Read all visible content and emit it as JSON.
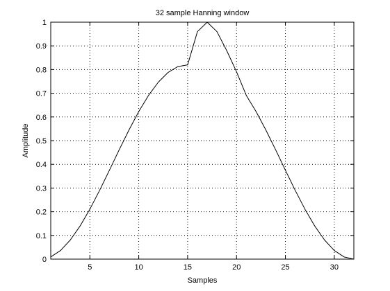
{
  "chart_data": {
    "type": "line",
    "title": "32 sample Hanning window",
    "xlabel": "Samples",
    "ylabel": "Amplitude",
    "xlim": [
      1,
      32
    ],
    "ylim": [
      0,
      1
    ],
    "xticks": [
      5,
      10,
      15,
      20,
      25,
      30
    ],
    "xtick_labels": [
      "5",
      "10",
      "15",
      "20",
      "25",
      "30"
    ],
    "yticks": [
      0,
      0.1,
      0.2,
      0.3,
      0.4,
      0.5,
      0.6,
      0.7,
      0.8,
      0.9,
      1
    ],
    "ytick_labels": [
      "0",
      "0.1",
      "0.2",
      "0.3",
      "0.4",
      "0.5",
      "0.6",
      "0.7",
      "0.8",
      "0.9",
      "1"
    ],
    "grid": true,
    "series": [
      {
        "color": "#000000",
        "x": [
          1,
          2,
          3,
          4,
          5,
          6,
          7,
          8,
          9,
          10,
          11,
          12,
          13,
          14,
          15,
          16,
          17,
          18,
          19,
          20,
          21,
          22,
          23,
          24,
          25,
          26,
          27,
          28,
          29,
          30,
          31,
          32
        ],
        "y": [
          0.0092,
          0.0364,
          0.0807,
          0.1397,
          0.2107,
          0.2904,
          0.3752,
          0.4614,
          0.545,
          0.6227,
          0.6909,
          0.7467,
          0.7879,
          0.8126,
          0.8197,
          0.96,
          1.0,
          0.96,
          0.8797,
          0.7907,
          0.6909,
          0.6227,
          0.545,
          0.4614,
          0.3752,
          0.2904,
          0.2107,
          0.1397,
          0.0807,
          0.0364,
          0.0092,
          0.0
        ]
      }
    ]
  }
}
